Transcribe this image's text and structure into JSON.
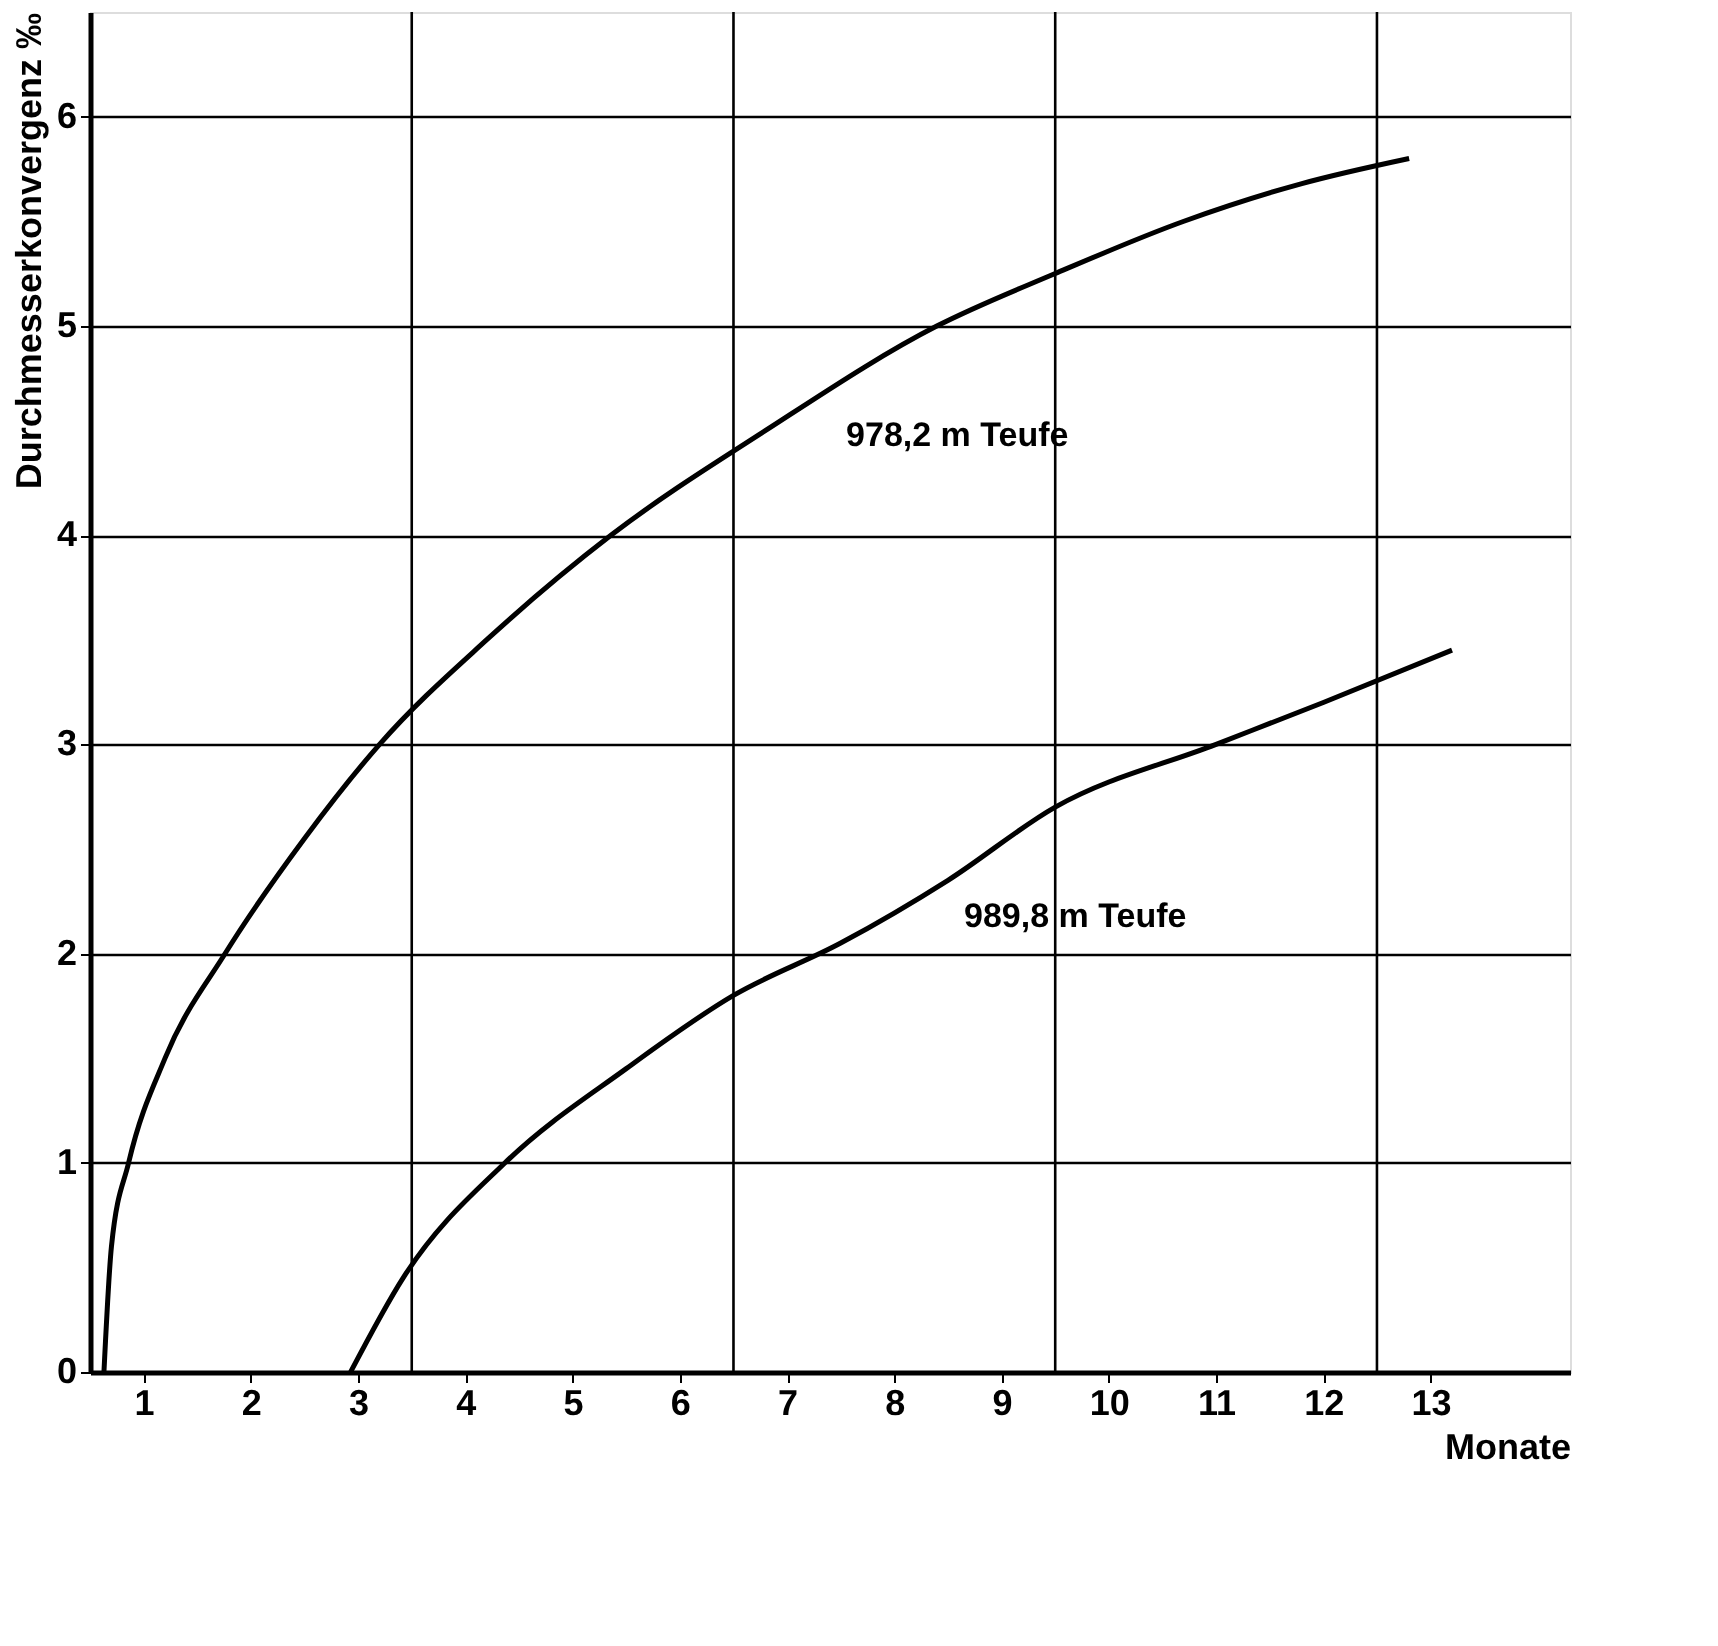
{
  "chart_data": {
    "type": "line",
    "xlabel": "Monate",
    "ylabel": "Durchmesserkonvergenz ‰",
    "xlim": [
      0,
      13.8
    ],
    "ylim": [
      0,
      6.5
    ],
    "xticks": [
      {
        "value": 0.5,
        "label": "1"
      },
      {
        "value": 1.5,
        "label": "2"
      },
      {
        "value": 2.5,
        "label": "3"
      },
      {
        "value": 3.5,
        "label": "4"
      },
      {
        "value": 4.5,
        "label": "5"
      },
      {
        "value": 5.5,
        "label": "6"
      },
      {
        "value": 6.5,
        "label": "7"
      },
      {
        "value": 7.5,
        "label": "8"
      },
      {
        "value": 8.5,
        "label": "9"
      },
      {
        "value": 9.5,
        "label": "10"
      },
      {
        "value": 10.5,
        "label": "11"
      },
      {
        "value": 11.5,
        "label": "12"
      },
      {
        "value": 12.5,
        "label": "13"
      }
    ],
    "yticks": [
      0,
      1,
      2,
      3,
      4,
      5,
      6
    ],
    "grid": "y",
    "marker": "none",
    "line_style": "solid",
    "legend": false,
    "ref_lines": [
      {
        "axis": "x",
        "value": 3,
        "color": "#000000"
      },
      {
        "axis": "x",
        "value": 6,
        "color": "#000000"
      },
      {
        "axis": "x",
        "value": 9,
        "color": "#000000"
      },
      {
        "axis": "x",
        "value": 12,
        "color": "#000000"
      }
    ],
    "series": [
      {
        "name": "978,2 m Teufe",
        "color": "#000000",
        "x": [
          0.13,
          0.2,
          0.36,
          0.7,
          1.26,
          2.0,
          2.7,
          3.7,
          4.86,
          6.3,
          7.9,
          9.0,
          10.2,
          11.3,
          12.3
        ],
        "values": [
          0,
          0.6,
          1.0,
          1.5,
          2.0,
          2.55,
          3.0,
          3.5,
          4.0,
          4.5,
          5.0,
          5.25,
          5.5,
          5.68,
          5.8
        ]
      },
      {
        "name": "989,8 m Teufe",
        "color": "#000000",
        "x": [
          2.43,
          2.92,
          3.87,
          5.0,
          6.0,
          7.0,
          8.0,
          9.0,
          10.5,
          11.5,
          12.7
        ],
        "values": [
          0,
          0.45,
          1.0,
          1.45,
          1.8,
          2.05,
          2.35,
          2.7,
          3.0,
          3.2,
          3.45
        ]
      }
    ]
  }
}
